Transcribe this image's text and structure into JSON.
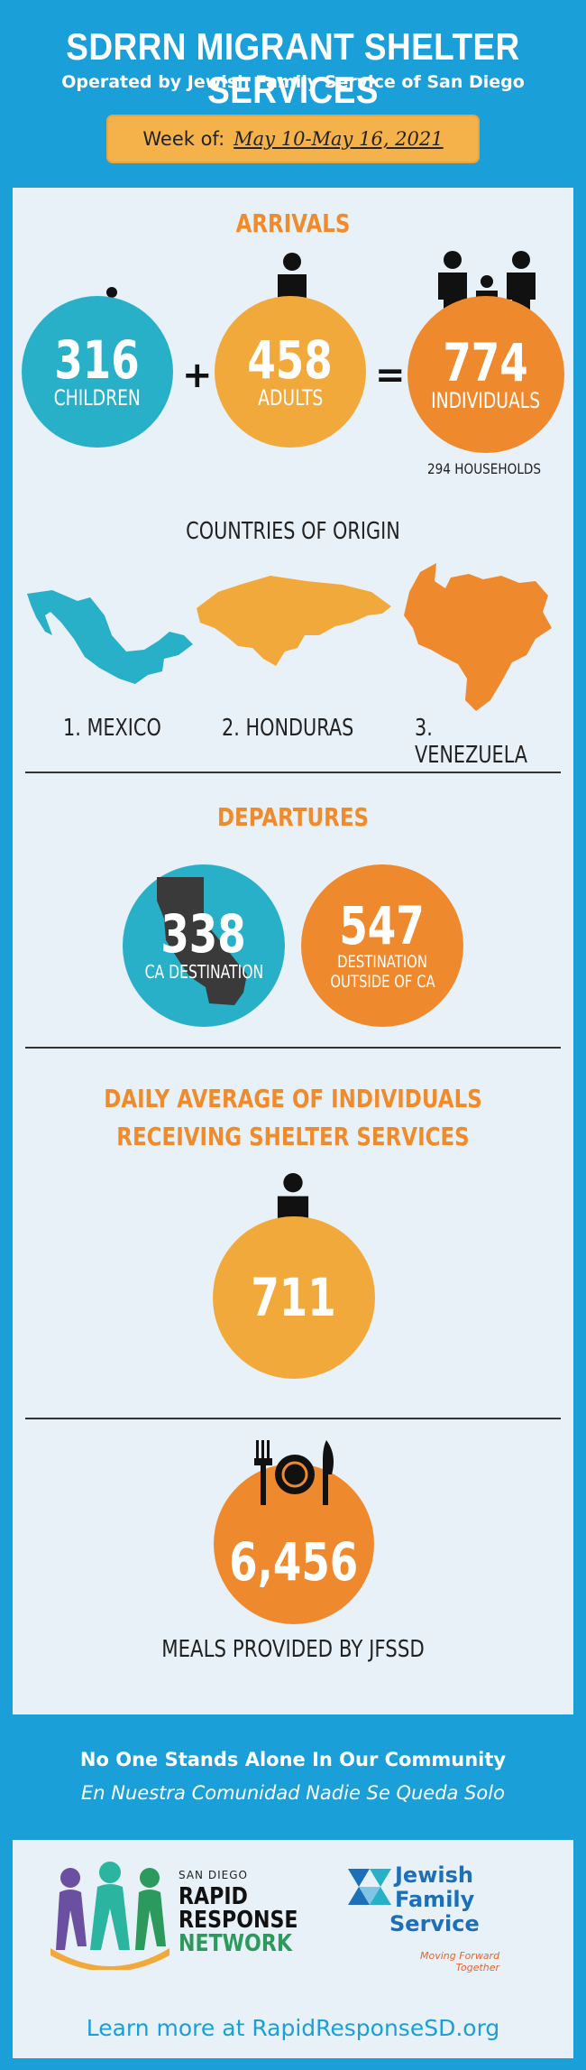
{
  "header": {
    "title": "SDRRN MIGRANT SHELTER SERVICES",
    "subtitle": "Operated by Jewish Family Service of San Diego",
    "week_label": "Week of:",
    "week_dates": "May 10-May 16, 2021"
  },
  "arrivals": {
    "title": "ARRIVALS",
    "children_value": "316",
    "children_label": "CHILDREN",
    "plus": "+",
    "adults_value": "458",
    "adults_label": "ADULTS",
    "equals": "=",
    "individuals_value": "774",
    "individuals_label": "INDIVIDUALS",
    "households": "294 HOUSEHOLDS"
  },
  "countries": {
    "title": "COUNTRIES OF ORIGIN",
    "items": [
      "1. MEXICO",
      "2. HONDURAS",
      "3. VENEZUELA"
    ]
  },
  "departures": {
    "title": "DEPARTURES",
    "ca_value": "338",
    "ca_label": "CA DESTINATION",
    "outside_value": "547",
    "outside_label_1": "DESTINATION",
    "outside_label_2": "OUTSIDE OF CA"
  },
  "daily": {
    "title_1": "DAILY AVERAGE OF INDIVIDUALS",
    "title_2": "RECEIVING SHELTER SERVICES",
    "value": "711"
  },
  "meals": {
    "value": "6,456",
    "label": "MEALS PROVIDED BY JFSSD"
  },
  "footer": {
    "tagline_en": "No One Stands Alone In Our Community",
    "tagline_es": "En Nuestra Comunidad Nadie Se Queda Solo",
    "rrn_small": "SAN DIEGO",
    "rrn_line1": "RAPID",
    "rrn_line2": "RESPONSE",
    "rrn_line3": "NETWORK",
    "jfs_line1": "Jewish",
    "jfs_line2": "Family",
    "jfs_line3": "Service",
    "jfs_tag1": "Moving Forward",
    "jfs_tag2": "Together",
    "learn_more": "Learn more at RapidResponseSD.org"
  },
  "colors": {
    "background_blue": "#1a9fd8",
    "teal": "#29b0c9",
    "yellow": "#f2a93b",
    "orange": "#ee8a2d",
    "panel": "#e8f1f7"
  }
}
